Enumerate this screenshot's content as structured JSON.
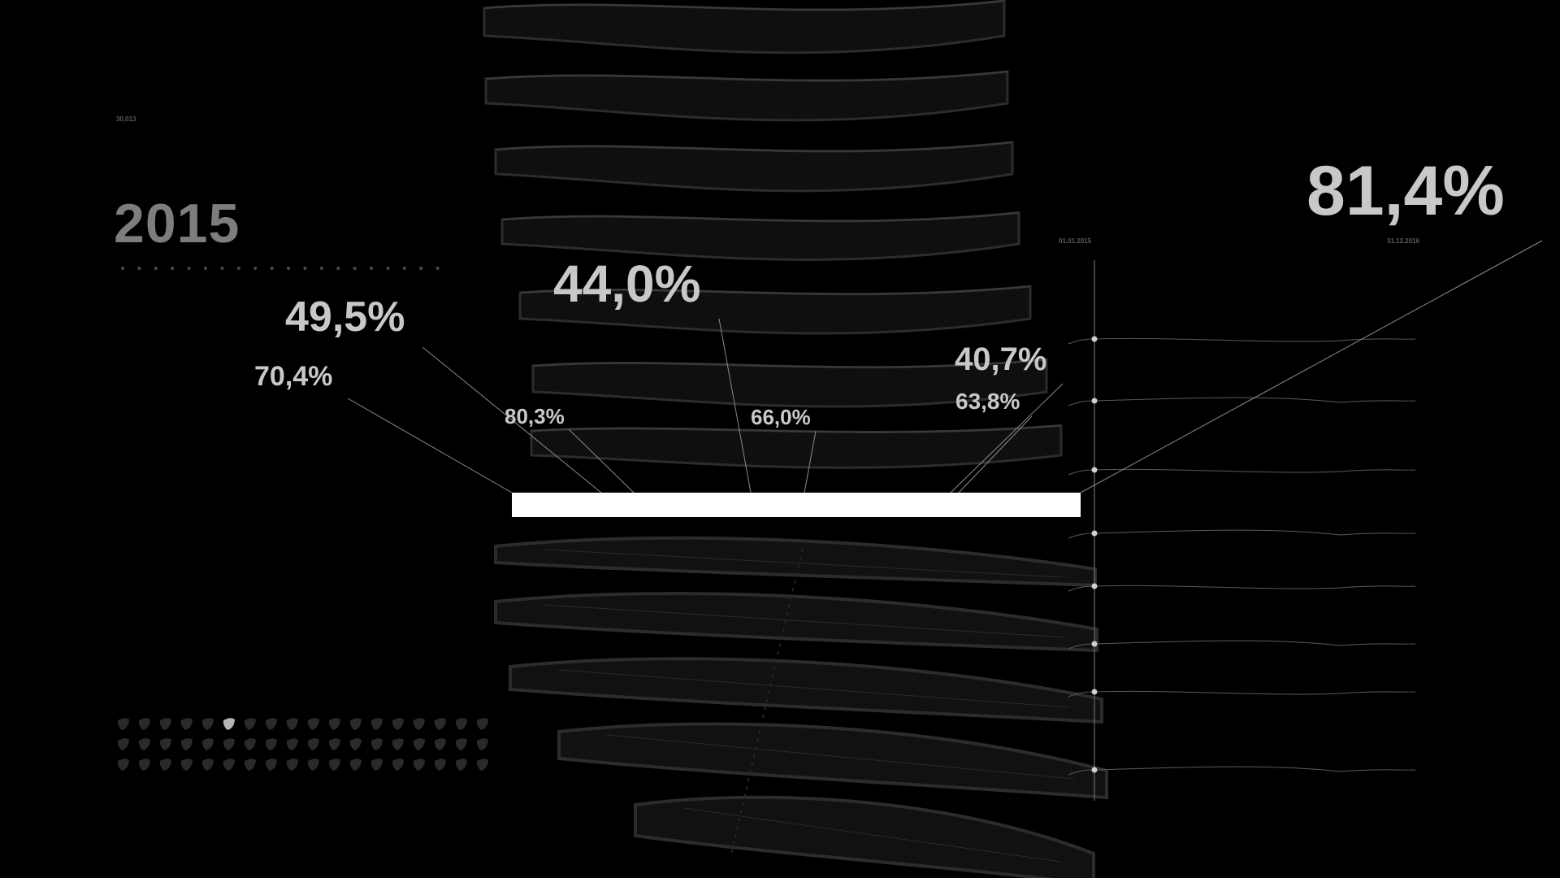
{
  "top_left_label": "30,013",
  "year": "2015",
  "date_start": "01.01.2015",
  "date_end": "31.12.2016",
  "colors": {
    "background": "#000000",
    "band_edge": "#2c2c2c",
    "band_fill": "#0f0f0f",
    "highlight": "#ffffff",
    "text": "#c8c8c8",
    "year_text": "#7d7d7d"
  },
  "chart_data": {
    "type": "other",
    "labels": [
      {
        "id": "big-right",
        "text": "81,4%",
        "value": 81.4
      },
      {
        "id": "center-big",
        "text": "44,0%",
        "value": 44.0
      },
      {
        "id": "left-big",
        "text": "49,5%",
        "value": 49.5
      },
      {
        "id": "left-mid",
        "text": "70,4%",
        "value": 70.4
      },
      {
        "id": "right-mid",
        "text": "40,7%",
        "value": 40.7
      },
      {
        "id": "right-small",
        "text": "63,8%",
        "value": 63.8
      },
      {
        "id": "left-small",
        "text": "80,3%",
        "value": 80.3
      },
      {
        "id": "center-small",
        "text": "66,0%",
        "value": 66.0
      }
    ],
    "bands_above": 7,
    "bands_below": 5,
    "timeline_rows": 8,
    "dot_grid": {
      "rows": 3,
      "cols": 18,
      "highlighted": {
        "row": 0,
        "col": 5
      }
    },
    "dotted_line_dots": 20
  }
}
